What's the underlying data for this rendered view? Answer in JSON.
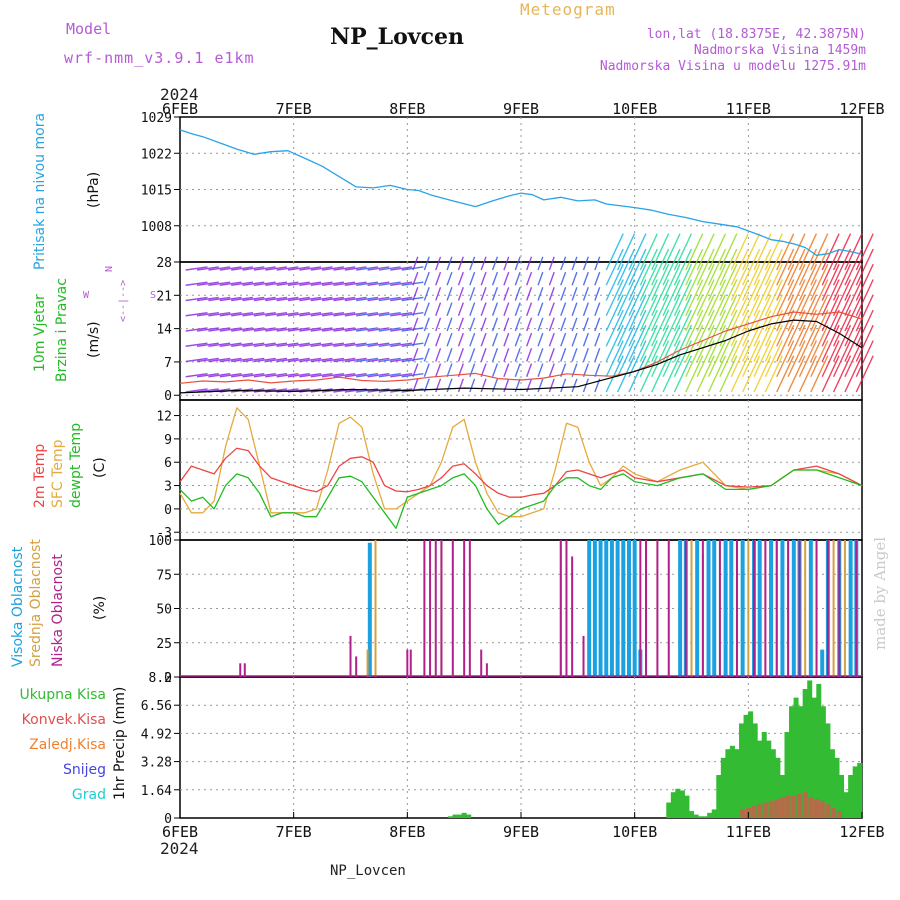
{
  "header": {
    "model_label": "Model",
    "model_name": "wrf-nmm_v3.9.1 e1km",
    "title": "NP_Lovcen",
    "meteogram_label": "Meteogram",
    "lonlat": "lon,lat (18.8375E, 42.3875N)",
    "altitude": "Nadmorska Visina 1459m",
    "model_altitude": "Nadmorska Visina u modelu 1275.91m",
    "bottom_title": "NP_Lovcen",
    "credit": "made by Angel",
    "year_top": "2024",
    "year_bottom": "2024"
  },
  "colors": {
    "pressure": "#29a3e6",
    "wind_speed": "#000000",
    "gust": "#e8513c",
    "temp2m": "#ee4444",
    "sfc_temp": "#e6a93c",
    "dewpoint": "#22bb22",
    "high_cloud": "#1ca1e0",
    "mid_cloud": "#d4a040",
    "low_cloud": "#b0208a",
    "total_precip": "#33bb33",
    "conv_precip": "#e05050",
    "freezing_precip": "#f08030",
    "snow": "#4444dd",
    "hail": "#22cccc",
    "purple_text": "#b45ad6"
  },
  "chart_data": [
    {
      "type": "line",
      "name": "pressure",
      "x_ticks": [
        "6FEB",
        "7FEB",
        "8FEB",
        "9FEB",
        "10FEB",
        "11FEB",
        "12FEB"
      ],
      "xlim_days": [
        0,
        6
      ],
      "ylim": [
        1001,
        1029
      ],
      "y_ticks": [
        "1008",
        "1015",
        "1022",
        "1029"
      ],
      "ylabel_title": "Pritisak na nivou mora",
      "ylabel_unit": "(hPa)",
      "grid": true,
      "series": [
        {
          "name": "Pritisak na nivou mora",
          "x": [
            0,
            0.1,
            0.2,
            0.35,
            0.5,
            0.65,
            0.8,
            0.95,
            1.0,
            1.1,
            1.25,
            1.4,
            1.55,
            1.7,
            1.85,
            2.0,
            2.1,
            2.2,
            2.4,
            2.6,
            2.75,
            2.9,
            3.0,
            3.1,
            3.2,
            3.35,
            3.5,
            3.65,
            3.75,
            3.9,
            4.0,
            4.15,
            4.3,
            4.45,
            4.6,
            4.75,
            4.9,
            5.0,
            5.1,
            5.2,
            5.3,
            5.4,
            5.5,
            5.6,
            5.7,
            5.8,
            5.9,
            6.0
          ],
          "y": [
            1026.5,
            1025.8,
            1025.2,
            1024.0,
            1022.8,
            1021.8,
            1022.3,
            1022.5,
            1022.0,
            1021.0,
            1019.5,
            1017.5,
            1015.5,
            1015.3,
            1015.8,
            1015.0,
            1014.8,
            1014.0,
            1012.8,
            1011.7,
            1012.8,
            1013.8,
            1014.3,
            1014.0,
            1013.0,
            1013.5,
            1012.8,
            1013.0,
            1012.2,
            1011.8,
            1011.5,
            1011.0,
            1010.2,
            1009.6,
            1008.8,
            1008.3,
            1007.8,
            1007.0,
            1006.2,
            1005.3,
            1005.0,
            1004.5,
            1003.8,
            1002.3,
            1002.6,
            1003.4,
            1003.0,
            1002.5
          ]
        }
      ]
    },
    {
      "type": "line",
      "name": "wind",
      "x_ticks": [
        "6FEB",
        "7FEB",
        "8FEB",
        "9FEB",
        "10FEB",
        "11FEB",
        "12FEB"
      ],
      "xlim_days": [
        0,
        6
      ],
      "ylim": [
        -1,
        28
      ],
      "y_ticks": [
        "0",
        "7",
        "14",
        "21",
        "28"
      ],
      "ylabel_title": "10m Vjetar",
      "ylabel_sub": "Brzina i Pravac",
      "ylabel_unit": "(m/s)",
      "direction_key": {
        "w": "W",
        "n": "N",
        "s": "S",
        "ar": "<--|-->"
      },
      "series": [
        {
          "name": "wind_speed",
          "x": [
            0,
            0.5,
            1,
            1.5,
            2,
            2.5,
            3,
            3.5,
            4,
            4.2,
            4.4,
            4.6,
            4.8,
            5.0,
            5.2,
            5.4,
            5.6,
            5.8,
            6.0
          ],
          "y": [
            0.5,
            1.0,
            0.8,
            1.2,
            1.0,
            1.5,
            1.2,
            1.8,
            5.0,
            6.5,
            8.5,
            10.0,
            11.5,
            13.5,
            15.0,
            15.8,
            15.5,
            13.0,
            10.0
          ]
        },
        {
          "name": "gust",
          "x": [
            0,
            0.2,
            0.4,
            0.6,
            0.8,
            1.0,
            1.2,
            1.4,
            1.6,
            1.8,
            2.0,
            2.2,
            2.4,
            2.6,
            2.8,
            3.0,
            3.2,
            3.4,
            3.6,
            3.8,
            4.0,
            4.2,
            4.4,
            4.6,
            4.8,
            5.0,
            5.2,
            5.4,
            5.6,
            5.8,
            6.0
          ],
          "y": [
            2.5,
            3.0,
            2.8,
            3.2,
            2.6,
            3.0,
            3.2,
            3.8,
            3.1,
            2.9,
            3.2,
            3.8,
            4.2,
            4.6,
            3.5,
            3.2,
            3.6,
            4.5,
            4.2,
            4.0,
            5.0,
            7.0,
            9.5,
            11.5,
            13.5,
            15.0,
            16.5,
            17.5,
            17.0,
            17.5,
            16.0
          ]
        }
      ]
    },
    {
      "type": "line",
      "name": "temperature",
      "x_ticks": [
        "6FEB",
        "7FEB",
        "8FEB",
        "9FEB",
        "10FEB",
        "11FEB",
        "12FEB"
      ],
      "xlim_days": [
        0,
        6
      ],
      "ylim": [
        -4,
        14
      ],
      "y_ticks": [
        "-3",
        "0",
        "3",
        "6",
        "9",
        "12"
      ],
      "ylabel_title1": "2m Temp",
      "ylabel_title2": "SFC Temp",
      "ylabel_title3": "dewpt Temp",
      "ylabel_unit": "(C)",
      "series": [
        {
          "name": "2m Temp",
          "x": [
            0,
            0.1,
            0.2,
            0.3,
            0.4,
            0.5,
            0.6,
            0.7,
            0.8,
            0.9,
            1.0,
            1.1,
            1.2,
            1.3,
            1.4,
            1.5,
            1.6,
            1.7,
            1.8,
            1.9,
            2.0,
            2.1,
            2.2,
            2.3,
            2.4,
            2.5,
            2.6,
            2.7,
            2.8,
            2.9,
            3.0,
            3.1,
            3.2,
            3.3,
            3.4,
            3.5,
            3.6,
            3.7,
            3.8,
            3.9,
            4.0,
            4.2,
            4.4,
            4.6,
            4.8,
            5.0,
            5.2,
            5.4,
            5.6,
            5.8,
            6.0
          ],
          "y": [
            3.5,
            5.5,
            5.0,
            4.5,
            6.5,
            7.8,
            7.5,
            5.5,
            4.0,
            3.5,
            3.0,
            2.5,
            2.2,
            3.0,
            5.5,
            6.5,
            6.7,
            6.0,
            3.0,
            2.3,
            2.2,
            2.5,
            3.0,
            4.0,
            5.5,
            5.8,
            4.5,
            3.0,
            2.0,
            1.5,
            1.5,
            1.8,
            2.0,
            3.0,
            4.8,
            5.0,
            4.5,
            4.0,
            4.5,
            5.0,
            4.0,
            3.5,
            4.0,
            4.5,
            3.0,
            2.8,
            3.0,
            5.0,
            5.5,
            4.5,
            3.0
          ]
        },
        {
          "name": "SFC Temp",
          "x": [
            0,
            0.1,
            0.2,
            0.3,
            0.4,
            0.5,
            0.6,
            0.7,
            0.8,
            0.9,
            1.0,
            1.1,
            1.2,
            1.3,
            1.4,
            1.5,
            1.6,
            1.7,
            1.8,
            1.9,
            2.0,
            2.1,
            2.2,
            2.3,
            2.4,
            2.5,
            2.6,
            2.7,
            2.8,
            2.9,
            3.0,
            3.1,
            3.2,
            3.3,
            3.4,
            3.5,
            3.6,
            3.7,
            3.8,
            3.9,
            4.0,
            4.2,
            4.4,
            4.6,
            4.8,
            5.0,
            5.2,
            5.4,
            5.6,
            5.8,
            6.0
          ],
          "y": [
            2.0,
            -0.5,
            -0.5,
            1.0,
            8.0,
            13.0,
            11.5,
            5.5,
            -0.5,
            -0.5,
            -0.5,
            -0.5,
            0.0,
            5.0,
            11.0,
            11.8,
            10.5,
            4.5,
            0.0,
            0.0,
            1.0,
            2.0,
            3.0,
            6.0,
            10.5,
            11.5,
            6.0,
            2.0,
            -0.5,
            -1.0,
            -1.0,
            -0.5,
            0.0,
            5.0,
            11.0,
            10.5,
            6.0,
            3.0,
            4.0,
            5.5,
            4.5,
            3.5,
            5.0,
            6.0,
            3.0,
            2.5,
            3.0,
            5.0,
            5.0,
            4.5,
            3.0
          ]
        },
        {
          "name": "dewpt Temp",
          "x": [
            0,
            0.1,
            0.2,
            0.3,
            0.4,
            0.5,
            0.6,
            0.7,
            0.8,
            0.9,
            1.0,
            1.1,
            1.2,
            1.3,
            1.4,
            1.5,
            1.6,
            1.7,
            1.8,
            1.9,
            2.0,
            2.1,
            2.2,
            2.3,
            2.4,
            2.5,
            2.6,
            2.7,
            2.8,
            2.9,
            3.0,
            3.1,
            3.2,
            3.3,
            3.4,
            3.5,
            3.6,
            3.7,
            3.8,
            3.9,
            4.0,
            4.2,
            4.4,
            4.6,
            4.8,
            5.0,
            5.2,
            5.4,
            5.6,
            5.8,
            6.0
          ],
          "y": [
            2.5,
            1.0,
            1.5,
            0.0,
            3.0,
            4.5,
            4.0,
            2.0,
            -1.0,
            -0.5,
            -0.5,
            -1.0,
            -1.0,
            1.5,
            4.0,
            4.2,
            3.5,
            1.5,
            -0.5,
            -2.5,
            1.5,
            2.0,
            2.5,
            3.0,
            4.0,
            4.5,
            3.0,
            0.0,
            -2.0,
            -1.0,
            0.0,
            0.5,
            1.0,
            3.0,
            4.0,
            4.0,
            3.0,
            2.5,
            4.0,
            4.5,
            3.5,
            3.0,
            4.0,
            4.5,
            2.5,
            2.5,
            3.0,
            5.0,
            5.0,
            4.0,
            3.0
          ]
        }
      ]
    },
    {
      "type": "bar",
      "name": "cloud_cover",
      "x_ticks": [
        "6FEB",
        "7FEB",
        "8FEB",
        "9FEB",
        "10FEB",
        "11FEB",
        "12FEB"
      ],
      "xlim_days": [
        0,
        6
      ],
      "ylim": [
        0,
        100
      ],
      "y_ticks": [
        "0",
        "25",
        "50",
        "75",
        "100"
      ],
      "ylabel_title1": "Visoka Oblacnost",
      "ylabel_title2": "Srednja Oblacnost",
      "ylabel_title3": "Niska Oblacnost",
      "ylabel_unit": "(%)",
      "series": [
        {
          "name": "Visoka Oblacnost",
          "x": [
            1.67,
            3.6,
            3.65,
            3.7,
            3.75,
            3.8,
            3.85,
            3.9,
            3.95,
            4.0,
            4.05,
            4.4,
            4.45,
            4.55,
            4.65,
            4.7,
            4.8,
            4.85,
            4.95,
            5.05,
            5.1,
            5.2,
            5.3,
            5.4,
            5.45,
            5.55,
            5.65,
            5.7,
            5.8,
            5.9,
            5.95
          ],
          "y": [
            98,
            100,
            100,
            100,
            100,
            100,
            100,
            100,
            100,
            100,
            20,
            100,
            100,
            100,
            100,
            100,
            100,
            100,
            100,
            100,
            100,
            100,
            100,
            100,
            100,
            100,
            20,
            100,
            100,
            100,
            100
          ]
        },
        {
          "name": "Srednja Oblacnost",
          "x": [
            1.65,
            1.72,
            2.3,
            3.35,
            4.1,
            4.5,
            4.6,
            4.9,
            5.0,
            5.25,
            5.35,
            5.5,
            5.6,
            5.75,
            5.85
          ],
          "y": [
            20,
            100,
            100,
            100,
            100,
            100,
            90,
            100,
            100,
            100,
            100,
            100,
            100,
            100,
            100
          ]
        },
        {
          "name": "Niska Oblacnost",
          "x": [
            0.53,
            0.57,
            1.5,
            1.55,
            2.0,
            2.03,
            2.15,
            2.2,
            2.25,
            2.3,
            2.4,
            2.5,
            2.55,
            2.65,
            2.7,
            3.35,
            3.4,
            3.45,
            3.55,
            4.05,
            4.1,
            4.2,
            4.3,
            4.45,
            4.6,
            4.75,
            4.9,
            5.05,
            5.15,
            5.25,
            5.35,
            5.45,
            5.6,
            5.7,
            5.8,
            5.95
          ],
          "y": [
            10,
            10,
            30,
            15,
            20,
            20,
            100,
            100,
            100,
            100,
            100,
            100,
            100,
            20,
            10,
            100,
            100,
            88,
            30,
            100,
            100,
            100,
            100,
            100,
            100,
            100,
            100,
            100,
            100,
            100,
            100,
            100,
            100,
            100,
            100,
            100
          ]
        }
      ]
    },
    {
      "type": "bar",
      "name": "precipitation",
      "x_ticks": [
        "6FEB",
        "7FEB",
        "8FEB",
        "9FEB",
        "10FEB",
        "11FEB",
        "12FEB"
      ],
      "xlim_days": [
        0,
        6
      ],
      "ylim": [
        0,
        8.2
      ],
      "y_ticks": [
        "0",
        "1.64",
        "3.28",
        "4.92",
        "6.56",
        "8.2"
      ],
      "ylabel": "1hr Precip (mm)",
      "legend": [
        "Ukupna Kisa",
        "Konvek.Kisa",
        "Zaledj.Kisa",
        "Snijeg",
        "Grad"
      ],
      "series": [
        {
          "name": "Ukupna Kisa",
          "x": [
            2.38,
            2.42,
            2.46,
            2.5,
            2.54,
            4.3,
            4.34,
            4.38,
            4.42,
            4.46,
            4.5,
            4.54,
            4.58,
            4.62,
            4.66,
            4.7,
            4.74,
            4.78,
            4.82,
            4.86,
            4.9,
            4.94,
            4.98,
            5.02,
            5.06,
            5.1,
            5.14,
            5.18,
            5.22,
            5.26,
            5.3,
            5.34,
            5.38,
            5.42,
            5.46,
            5.5,
            5.54,
            5.58,
            5.62,
            5.66,
            5.7,
            5.74,
            5.78,
            5.82,
            5.86,
            5.9,
            5.94,
            5.98
          ],
          "y": [
            0.1,
            0.2,
            0.2,
            0.3,
            0.2,
            0.9,
            1.5,
            1.7,
            1.6,
            1.3,
            0.4,
            0.2,
            0.1,
            0.1,
            0.3,
            0.5,
            2.5,
            3.5,
            4.0,
            4.2,
            4.0,
            5.5,
            6.0,
            6.2,
            5.5,
            4.5,
            5.0,
            4.5,
            4.0,
            3.5,
            2.5,
            5.0,
            6.5,
            7.0,
            6.5,
            7.5,
            8.0,
            7.0,
            7.8,
            6.5,
            5.5,
            4.0,
            3.5,
            2.5,
            1.5,
            2.5,
            3.0,
            3.2
          ]
        },
        {
          "name": "Konvek.Kisa",
          "x": [
            4.95,
            5.0,
            5.05,
            5.1,
            5.15,
            5.2,
            5.25,
            5.3,
            5.35,
            5.4,
            5.45,
            5.5,
            5.55,
            5.6,
            5.65,
            5.7,
            5.75,
            5.8
          ],
          "y": [
            0.5,
            0.6,
            0.7,
            0.8,
            0.9,
            1.0,
            1.1,
            1.2,
            1.3,
            1.3,
            1.4,
            1.5,
            1.2,
            1.1,
            1.0,
            0.8,
            0.6,
            0.4
          ]
        }
      ]
    }
  ]
}
